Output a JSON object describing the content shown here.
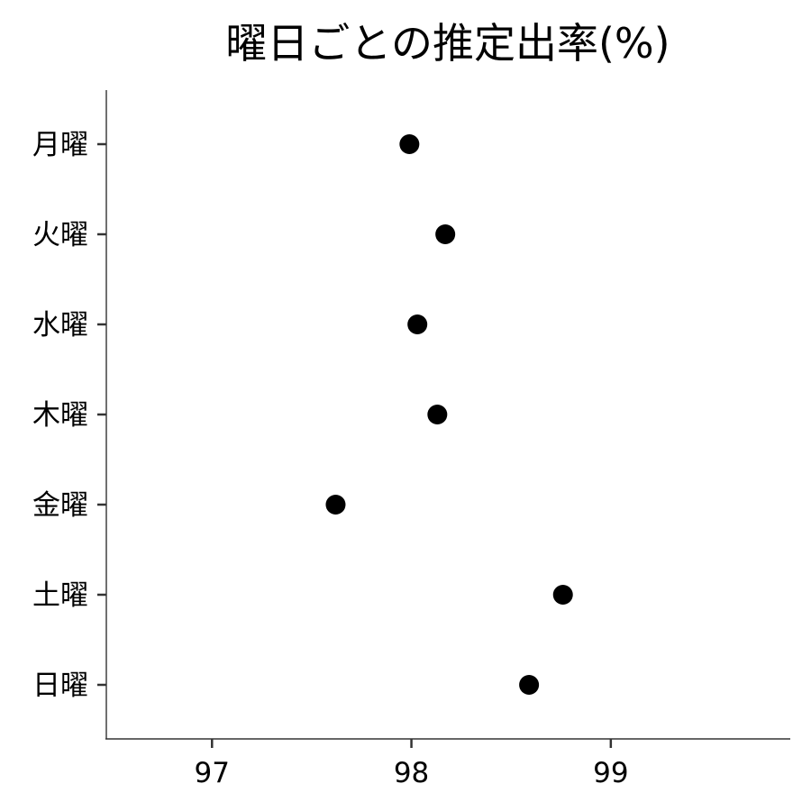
{
  "chart_data": {
    "type": "scatter",
    "title": "曜日ごとの推定出率(%)",
    "xlabel": "",
    "ylabel": "",
    "categories": [
      "月曜",
      "火曜",
      "水曜",
      "木曜",
      "金曜",
      "土曜",
      "日曜"
    ],
    "series": [
      {
        "values": [
          97.99,
          98.17,
          98.03,
          98.13,
          97.62,
          98.76,
          98.59
        ]
      }
    ],
    "x_ticks": [
      97,
      98,
      99
    ],
    "xlim": [
      96.47,
      99.9
    ],
    "grid": false,
    "legend": "none",
    "point_color": "#000000"
  }
}
